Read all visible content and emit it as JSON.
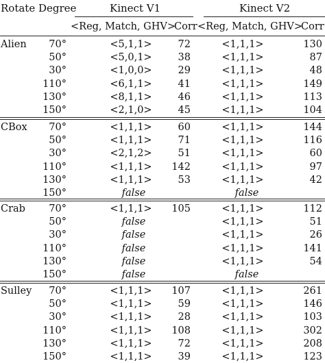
{
  "header": {
    "rotate_degree": "Rotate Degree",
    "kinect_v1": "Kinect V1",
    "kinect_v2": "Kinect V2",
    "params_label": "<Reg, Match, GHV>",
    "corr_label": "Corr"
  },
  "false_label": "false",
  "groups": [
    {
      "name": "Alien",
      "rows": [
        {
          "deg": "70°",
          "v1": "<5,1,1>",
          "v1c": "72",
          "v2": "<1,1,1>",
          "v2c": "130"
        },
        {
          "deg": "50°",
          "v1": "<5,0,1>",
          "v1c": "38",
          "v2": "<1,1,1>",
          "v2c": "87"
        },
        {
          "deg": "30°",
          "v1": "<1,0,0>",
          "v1c": "29",
          "v2": "<1,1,1>",
          "v2c": "48"
        },
        {
          "deg": "110°",
          "v1": "<6,1,1>",
          "v1c": "41",
          "v2": "<1,1,1>",
          "v2c": "149"
        },
        {
          "deg": "130°",
          "v1": "<8,1,1>",
          "v1c": "46",
          "v2": "<1,1,1>",
          "v2c": "113"
        },
        {
          "deg": "150°",
          "v1": "<2,1,0>",
          "v1c": "45",
          "v2": "<1,1,1>",
          "v2c": "104"
        }
      ]
    },
    {
      "name": "CBox",
      "rows": [
        {
          "deg": "70°",
          "v1": "<1,1,1>",
          "v1c": "60",
          "v2": "<1,1,1>",
          "v2c": "144"
        },
        {
          "deg": "50°",
          "v1": "<1,1,1>",
          "v1c": "71",
          "v2": "<1,1,1>",
          "v2c": "116"
        },
        {
          "deg": "30°",
          "v1": "<2,1,2>",
          "v1c": "51",
          "v2": "<1,1,1>",
          "v2c": "60"
        },
        {
          "deg": "110°",
          "v1": "<1,1,1>",
          "v1c": "142",
          "v2": "<1,1,1>",
          "v2c": "97"
        },
        {
          "deg": "130°",
          "v1": "<1,1,1>",
          "v1c": "53",
          "v2": "<1,1,1>",
          "v2c": "42"
        },
        {
          "deg": "150°",
          "v1": null,
          "v1c": null,
          "v2": null,
          "v2c": null
        }
      ]
    },
    {
      "name": "Crab",
      "rows": [
        {
          "deg": "70°",
          "v1": "<1,1,1>",
          "v1c": "105",
          "v2": "<1,1,1>",
          "v2c": "112"
        },
        {
          "deg": "50°",
          "v1": null,
          "v1c": null,
          "v2": "<1,1,1>",
          "v2c": "51"
        },
        {
          "deg": "30°",
          "v1": null,
          "v1c": null,
          "v2": "<1,1,1>",
          "v2c": "26"
        },
        {
          "deg": "110°",
          "v1": null,
          "v1c": null,
          "v2": "<1,1,1>",
          "v2c": "141"
        },
        {
          "deg": "130°",
          "v1": null,
          "v1c": null,
          "v2": "<1,1,1>",
          "v2c": "54"
        },
        {
          "deg": "150°",
          "v1": null,
          "v1c": null,
          "v2": null,
          "v2c": null
        }
      ]
    },
    {
      "name": "Sulley",
      "rows": [
        {
          "deg": "70°",
          "v1": "<1,1,1>",
          "v1c": "107",
          "v2": "<1,1,1>",
          "v2c": "261"
        },
        {
          "deg": "50°",
          "v1": "<1,1,1>",
          "v1c": "59",
          "v2": "<1,1,1>",
          "v2c": "146"
        },
        {
          "deg": "30°",
          "v1": "<1,1,1>",
          "v1c": "28",
          "v2": "<1,1,1>",
          "v2c": "103"
        },
        {
          "deg": "110°",
          "v1": "<1,1,1>",
          "v1c": "108",
          "v2": "<1,1,1>",
          "v2c": "302"
        },
        {
          "deg": "130°",
          "v1": "<1,1,1>",
          "v1c": "72",
          "v2": "<1,1,1>",
          "v2c": "208"
        },
        {
          "deg": "150°",
          "v1": "<1,1,1>",
          "v1c": "39",
          "v2": "<1,1,1>",
          "v2c": "123"
        }
      ]
    }
  ]
}
